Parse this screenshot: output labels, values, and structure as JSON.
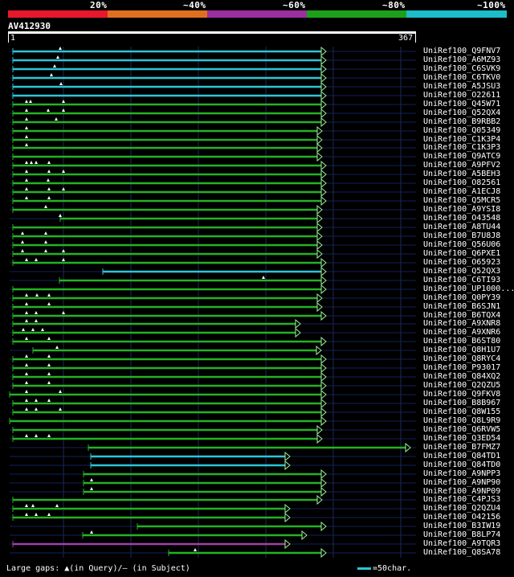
{
  "legend": {
    "colors": [
      "#e8182c",
      "#e07020",
      "#9b2fa0",
      "#1ca01c",
      "#1cbcc8"
    ],
    "labels": [
      "20%",
      "~40%",
      "~60%",
      "~80%",
      "~100%"
    ]
  },
  "query": {
    "name": "AV412930",
    "start_label": "1",
    "end_label": "367"
  },
  "hits": [
    {
      "label": "UniRef100_Q9FNV7",
      "color": "#2cc6d6",
      "x1": 16,
      "x2": 405,
      "marks": [
        75
      ]
    },
    {
      "label": "UniRef100_A6MZ93",
      "color": "#2cc6d6",
      "x1": 16,
      "x2": 405,
      "marks": [
        72
      ]
    },
    {
      "label": "UniRef100_C6SVK9",
      "color": "#2cc6d6",
      "x1": 16,
      "x2": 405,
      "marks": [
        68
      ]
    },
    {
      "label": "UniRef100_C6TKV0",
      "color": "#2cc6d6",
      "x1": 16,
      "x2": 405,
      "marks": [
        64
      ]
    },
    {
      "label": "UniRef100_A5JSU3",
      "color": "#2cc6d6",
      "x1": 16,
      "x2": 405,
      "marks": [
        76
      ]
    },
    {
      "label": "UniRef100_O22611",
      "color": "#2cc6d6",
      "x1": 16,
      "x2": 405,
      "marks": []
    },
    {
      "label": "UniRef100_Q45W71",
      "color": "#24b224",
      "x1": 16,
      "x2": 405,
      "marks": [
        33,
        38,
        79
      ]
    },
    {
      "label": "UniRef100_Q52QX4",
      "color": "#24b224",
      "x1": 16,
      "x2": 405,
      "marks": [
        33,
        60,
        79
      ]
    },
    {
      "label": "UniRef100_B9RBB2",
      "color": "#24b224",
      "x1": 16,
      "x2": 405,
      "marks": [
        33,
        70
      ]
    },
    {
      "label": "UniRef100_Q05349",
      "color": "#24b224",
      "x1": 16,
      "x2": 400,
      "marks": [
        33
      ]
    },
    {
      "label": "UniRef100_C1K3P4",
      "color": "#24b224",
      "x1": 16,
      "x2": 400,
      "marks": [
        33
      ]
    },
    {
      "label": "UniRef100_C1K3P3",
      "color": "#24b224",
      "x1": 16,
      "x2": 400,
      "marks": [
        33
      ]
    },
    {
      "label": "UniRef100_Q9ATC9",
      "color": "#24b224",
      "x1": 16,
      "x2": 400,
      "marks": []
    },
    {
      "label": "UniRef100_A9PFV2",
      "color": "#24b224",
      "x1": 16,
      "x2": 405,
      "marks": [
        33,
        39,
        45,
        61
      ]
    },
    {
      "label": "UniRef100_A5BEH3",
      "color": "#24b224",
      "x1": 16,
      "x2": 405,
      "marks": [
        33,
        61,
        79
      ]
    },
    {
      "label": "UniRef100_O82561",
      "color": "#24b224",
      "x1": 16,
      "x2": 405,
      "marks": [
        33,
        60
      ]
    },
    {
      "label": "UniRef100_A1ECJ8",
      "color": "#24b224",
      "x1": 16,
      "x2": 405,
      "marks": [
        33,
        61,
        79
      ]
    },
    {
      "label": "UniRef100_Q5MCR5",
      "color": "#24b224",
      "x1": 16,
      "x2": 405,
      "marks": [
        33,
        61
      ]
    },
    {
      "label": "UniRef100_A9YSI8",
      "color": "#24b224",
      "x1": 16,
      "x2": 400,
      "marks": [
        57
      ]
    },
    {
      "label": "UniRef100_O43548",
      "color": "#24b224",
      "x1": 75,
      "x2": 400,
      "marks": [
        75
      ]
    },
    {
      "label": "UniRef100_A8TU44",
      "color": "#24b224",
      "x1": 16,
      "x2": 400,
      "marks": []
    },
    {
      "label": "UniRef100_B7U8J8",
      "color": "#24b224",
      "x1": 16,
      "x2": 400,
      "marks": [
        28,
        57
      ]
    },
    {
      "label": "UniRef100_Q56U06",
      "color": "#24b224",
      "x1": 16,
      "x2": 400,
      "marks": [
        28,
        57
      ]
    },
    {
      "label": "UniRef100_Q6PXE1",
      "color": "#24b224",
      "x1": 16,
      "x2": 400,
      "marks": [
        28,
        57,
        79
      ]
    },
    {
      "label": "UniRef100_O65923",
      "color": "#24b224",
      "x1": 16,
      "x2": 405,
      "marks": [
        33,
        45,
        79
      ]
    },
    {
      "label": "UniRef100_Q52QX3",
      "color": "#2cc6d6",
      "x1": 128,
      "x2": 405,
      "marks": []
    },
    {
      "label": "UniRef100_C6TI93",
      "color": "#24b224",
      "x1": 74,
      "x2": 405,
      "marks": [
        328
      ]
    },
    {
      "label": "UniRef100_UP1000...",
      "color": "#24b224",
      "x1": 16,
      "x2": 405,
      "marks": []
    },
    {
      "label": "UniRef100_Q0PY39",
      "color": "#24b224",
      "x1": 16,
      "x2": 400,
      "marks": [
        33,
        46,
        61
      ]
    },
    {
      "label": "UniRef100_B6SJN1",
      "color": "#24b224",
      "x1": 16,
      "x2": 400,
      "marks": [
        33,
        61
      ]
    },
    {
      "label": "UniRef100_B6TQX4",
      "color": "#24b224",
      "x1": 16,
      "x2": 405,
      "marks": [
        33,
        45,
        79
      ]
    },
    {
      "label": "UniRef100_A9XNR8",
      "color": "#24b224",
      "x1": 16,
      "x2": 373,
      "marks": [
        33,
        45
      ]
    },
    {
      "label": "UniRef100_A9XNR6",
      "color": "#24b224",
      "x1": 16,
      "x2": 373,
      "marks": [
        29,
        41,
        53
      ]
    },
    {
      "label": "UniRef100_B6ST80",
      "color": "#24b224",
      "x1": 16,
      "x2": 405,
      "marks": [
        33,
        61
      ]
    },
    {
      "label": "UniRef100_Q8H1U7",
      "color": "#24b224",
      "x1": 41,
      "x2": 399,
      "marks": [
        71
      ]
    },
    {
      "label": "UniRef100_Q8RYC4",
      "color": "#24b224",
      "x1": 16,
      "x2": 405,
      "marks": [
        33,
        61
      ]
    },
    {
      "label": "UniRef100_P93017",
      "color": "#24b224",
      "x1": 16,
      "x2": 405,
      "marks": [
        33,
        61
      ]
    },
    {
      "label": "UniRef100_Q84XQ2",
      "color": "#24b224",
      "x1": 16,
      "x2": 405,
      "marks": [
        33,
        61
      ]
    },
    {
      "label": "UniRef100_Q2QZU5",
      "color": "#24b224",
      "x1": 16,
      "x2": 405,
      "marks": [
        33,
        61
      ]
    },
    {
      "label": "UniRef100_Q9FKV8",
      "color": "#24b224",
      "x1": 12,
      "x2": 405,
      "marks": [
        33,
        75
      ]
    },
    {
      "label": "UniRef100_B8B967",
      "color": "#24b224",
      "x1": 16,
      "x2": 405,
      "marks": [
        33,
        45,
        61
      ]
    },
    {
      "label": "UniRef100_Q8W155",
      "color": "#24b224",
      "x1": 16,
      "x2": 405,
      "marks": [
        33,
        45,
        75
      ]
    },
    {
      "label": "UniRef100_Q8L9R9",
      "color": "#24b224",
      "x1": 12,
      "x2": 405,
      "marks": []
    },
    {
      "label": "UniRef100_Q6RVW5",
      "color": "#24b224",
      "x1": 16,
      "x2": 400,
      "marks": []
    },
    {
      "label": "UniRef100_Q3ED54",
      "color": "#24b224",
      "x1": 16,
      "x2": 400,
      "marks": [
        33,
        45,
        61
      ]
    },
    {
      "label": "UniRef100_B7FMZ7",
      "color": "#24b224",
      "x1": 110,
      "x2": 510,
      "marks": []
    },
    {
      "label": "UniRef100_Q84TD1",
      "color": "#2cc6d6",
      "x1": 113,
      "x2": 360,
      "marks": []
    },
    {
      "label": "UniRef100_Q84TD0",
      "color": "#2cc6d6",
      "x1": 113,
      "x2": 360,
      "marks": []
    },
    {
      "label": "UniRef100_A9NPP3",
      "color": "#24b224",
      "x1": 104,
      "x2": 405,
      "marks": []
    },
    {
      "label": "UniRef100_A9NP90",
      "color": "#24b224",
      "x1": 104,
      "x2": 405,
      "marks": [
        114
      ]
    },
    {
      "label": "UniRef100_A9NP09",
      "color": "#24b224",
      "x1": 104,
      "x2": 405,
      "marks": [
        114
      ]
    },
    {
      "label": "UniRef100_C4PJS3",
      "color": "#24b224",
      "x1": 16,
      "x2": 400,
      "marks": []
    },
    {
      "label": "UniRef100_Q2QZU4",
      "color": "#24b224",
      "x1": 16,
      "x2": 360,
      "marks": [
        33,
        41,
        71
      ]
    },
    {
      "label": "UniRef100_O42156",
      "color": "#24b224",
      "x1": 16,
      "x2": 360,
      "marks": [
        33,
        45,
        61
      ]
    },
    {
      "label": "UniRef100_B3IW19",
      "color": "#24b224",
      "x1": 171,
      "x2": 405,
      "marks": []
    },
    {
      "label": "UniRef100_B8LP74",
      "color": "#24b224",
      "x1": 103,
      "x2": 381,
      "marks": [
        114
      ]
    },
    {
      "label": "UniRef100_A9TQR3",
      "color": "#a040a8",
      "x1": 16,
      "x2": 360,
      "marks": []
    },
    {
      "label": "UniRef100_Q8SA78",
      "color": "#24b224",
      "x1": 210,
      "x2": 405,
      "marks": [
        243
      ]
    }
  ],
  "footer": {
    "text": "Large gaps: ▲(in Query)/— (in Subject)",
    "scale": "=50char."
  }
}
